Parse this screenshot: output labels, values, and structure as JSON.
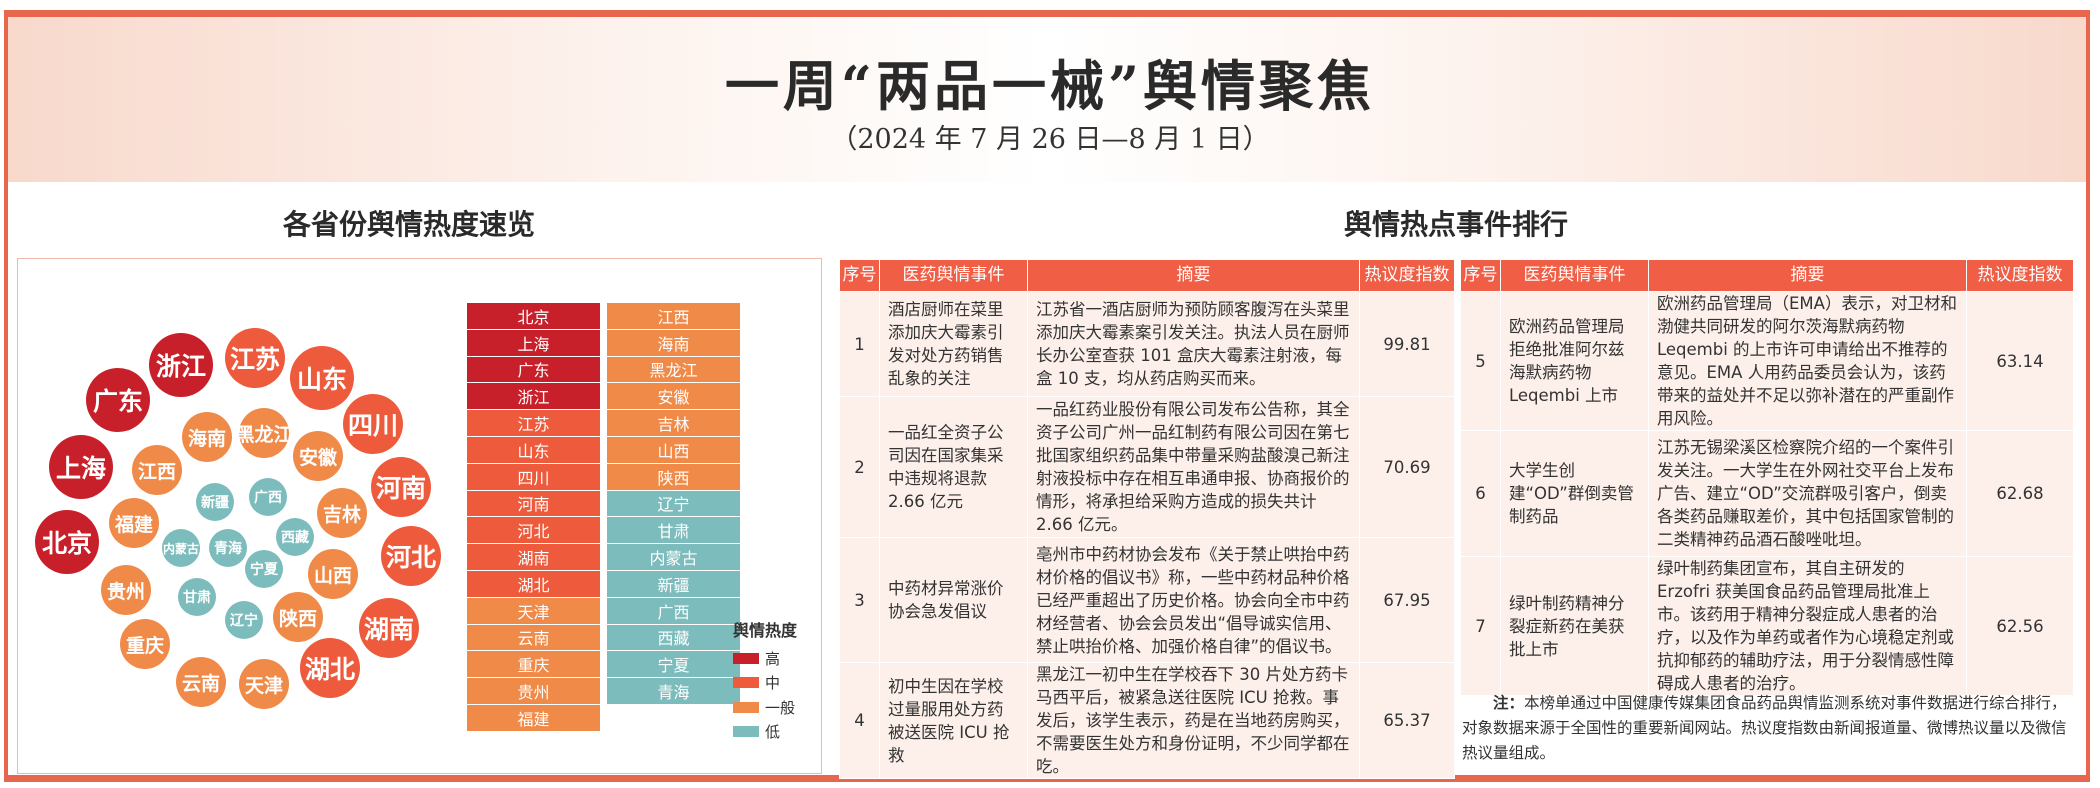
{
  "header": {
    "title": "一周“两品一械”舆情聚焦",
    "subtitle": "（2024 年 7 月 26 日—8 月 1 日）"
  },
  "left": {
    "title": "各省份舆情热度速览",
    "colors": {
      "high": "#c8202a",
      "mid": "#ee5a3c",
      "normal": "#f08a48",
      "low": "#7dbcbd"
    },
    "bubbles": [
      {
        "name": "浙江",
        "level": "high"
      },
      {
        "name": "江苏",
        "level": "mid"
      },
      {
        "name": "山东",
        "level": "mid"
      },
      {
        "name": "广东",
        "level": "high"
      },
      {
        "name": "四川",
        "level": "mid"
      },
      {
        "name": "海南",
        "level": "normal"
      },
      {
        "name": "黑龙江",
        "level": "normal"
      },
      {
        "name": "安徽",
        "level": "normal"
      },
      {
        "name": "上海",
        "level": "high"
      },
      {
        "name": "江西",
        "level": "normal"
      },
      {
        "name": "河南",
        "level": "mid"
      },
      {
        "name": "新疆",
        "level": "low"
      },
      {
        "name": "广西",
        "level": "low"
      },
      {
        "name": "吉林",
        "level": "normal"
      },
      {
        "name": "福建",
        "level": "normal"
      },
      {
        "name": "北京",
        "level": "high"
      },
      {
        "name": "内蒙古",
        "level": "low"
      },
      {
        "name": "青海",
        "level": "low"
      },
      {
        "name": "西藏",
        "level": "low"
      },
      {
        "name": "河北",
        "level": "mid"
      },
      {
        "name": "宁夏",
        "level": "low"
      },
      {
        "name": "山西",
        "level": "normal"
      },
      {
        "name": "贵州",
        "level": "normal"
      },
      {
        "name": "甘肃",
        "level": "low"
      },
      {
        "name": "辽宁",
        "level": "low"
      },
      {
        "name": "陕西",
        "level": "normal"
      },
      {
        "name": "湖南",
        "level": "mid"
      },
      {
        "name": "重庆",
        "level": "normal"
      },
      {
        "name": "云南",
        "level": "normal"
      },
      {
        "name": "天津",
        "level": "normal"
      },
      {
        "name": "湖北",
        "level": "mid"
      }
    ],
    "ranking_col1": [
      {
        "name": "北京",
        "level": "high"
      },
      {
        "name": "上海",
        "level": "high"
      },
      {
        "name": "广东",
        "level": "high"
      },
      {
        "name": "浙江",
        "level": "high"
      },
      {
        "name": "江苏",
        "level": "mid"
      },
      {
        "name": "山东",
        "level": "mid"
      },
      {
        "name": "四川",
        "level": "mid"
      },
      {
        "name": "河南",
        "level": "mid"
      },
      {
        "name": "河北",
        "level": "mid"
      },
      {
        "name": "湖南",
        "level": "mid"
      },
      {
        "name": "湖北",
        "level": "mid"
      },
      {
        "name": "天津",
        "level": "normal"
      },
      {
        "name": "云南",
        "level": "normal"
      },
      {
        "name": "重庆",
        "level": "normal"
      },
      {
        "name": "贵州",
        "level": "normal"
      },
      {
        "name": "福建",
        "level": "normal"
      }
    ],
    "ranking_col2": [
      {
        "name": "江西",
        "level": "normal"
      },
      {
        "name": "海南",
        "level": "normal"
      },
      {
        "name": "黑龙江",
        "level": "normal"
      },
      {
        "name": "安徽",
        "level": "normal"
      },
      {
        "name": "吉林",
        "level": "normal"
      },
      {
        "name": "山西",
        "level": "normal"
      },
      {
        "name": "陕西",
        "level": "normal"
      },
      {
        "name": "辽宁",
        "level": "low"
      },
      {
        "name": "甘肃",
        "level": "low"
      },
      {
        "name": "内蒙古",
        "level": "low"
      },
      {
        "name": "新疆",
        "level": "low"
      },
      {
        "name": "广西",
        "level": "low"
      },
      {
        "name": "西藏",
        "level": "low"
      },
      {
        "name": "宁夏",
        "level": "low"
      },
      {
        "name": "青海",
        "level": "low"
      }
    ],
    "legend": {
      "title": "舆情热度",
      "items": [
        {
          "label": "高",
          "level": "high"
        },
        {
          "label": "中",
          "level": "mid"
        },
        {
          "label": "一般",
          "level": "normal"
        },
        {
          "label": "低",
          "level": "low"
        }
      ]
    }
  },
  "right": {
    "title": "舆情热点事件排行",
    "columns": [
      "序号",
      "医药舆情事件",
      "摘要",
      "热议度指数"
    ],
    "events": [
      {
        "no": "1",
        "event": "酒店厨师在菜里添加庆大霉素引发对处方药销售乱象的关注",
        "summary": "江苏省一酒店厨师为预防顾客腹泻在头菜里添加庆大霉素案引发关注。执法人员在厨师长办公室查获 101 盒庆大霉素注射液，每盒 10 支，均从药店购买而来。",
        "index": "99.81"
      },
      {
        "no": "2",
        "event": "一品红全资子公司因在国家集采中违规将退款 2.66 亿元",
        "summary": "一品红药业股份有限公司发布公告称，其全资子公司广州一品红制药有限公司因在第七批国家组织药品集中带量采购盐酸溴己新注射液投标中存在相互串通申报、协商报价的情形，将承担给采购方造成的损失共计 2.66 亿元。",
        "index": "70.69"
      },
      {
        "no": "3",
        "event": "中药材异常涨价协会急发倡议",
        "summary": "亳州市中药材协会发布《关于禁止哄抬中药材价格的倡议书》称，一些中药材品种价格已经严重超出了历史价格。协会向全市中药材经营者、协会会员发出“倡导诚实信用、禁止哄抬价格、加强价格自律”的倡议书。",
        "index": "67.95"
      },
      {
        "no": "4",
        "event": "初中生因在学校过量服用处方药被送医院 ICU 抢救",
        "summary": "黑龙江一初中生在学校吞下 30 片处方药卡马西平后，被紧急送往医院 ICU 抢救。事发后，该学生表示，药是在当地药房购买，不需要医生处方和身份证明，不少同学都在吃。",
        "index": "65.37"
      },
      {
        "no": "5",
        "event": "欧洲药品管理局拒绝批准阿尔兹海默病药物 Leqembi 上市",
        "summary": "欧洲药品管理局（EMA）表示，对卫材和渤健共同研发的阿尔茨海默病药物 Leqembi 的上市许可申请给出不推荐的意见。EMA 人用药品委员会认为，该药带来的益处并不足以弥补潜在的严重副作用风险。",
        "index": "63.14"
      },
      {
        "no": "6",
        "event": "大学生创建“OD”群倒卖管制药品",
        "summary": "江苏无锡梁溪区检察院介绍的一个案件引发关注。一大学生在外网社交平台上发布广告、建立“OD”交流群吸引客户，倒卖各类药品赚取差价，其中包括国家管制的二类精神药品酒石酸唑吡坦。",
        "index": "62.68"
      },
      {
        "no": "7",
        "event": "绿叶制药精神分裂症新药在美获批上市",
        "summary": "绿叶制药集团宣布，其自主研发的 Erzofri 获美国食品药品管理局批准上市。该药用于精神分裂症成人患者的治疗，以及作为单药或者作为心境稳定剂或抗抑郁药的辅助疗法，用于分裂情感性障碍成人患者的治疗。",
        "index": "62.56"
      }
    ],
    "note_label": "注：",
    "note": "本榜单通过中国健康传媒集团食品药品舆情监测系统对事件数据进行综合排行，对象数据来源于全国性的重要新闻网站。热议度指数由新闻报道量、微博热议量以及微信热议量组成。"
  }
}
